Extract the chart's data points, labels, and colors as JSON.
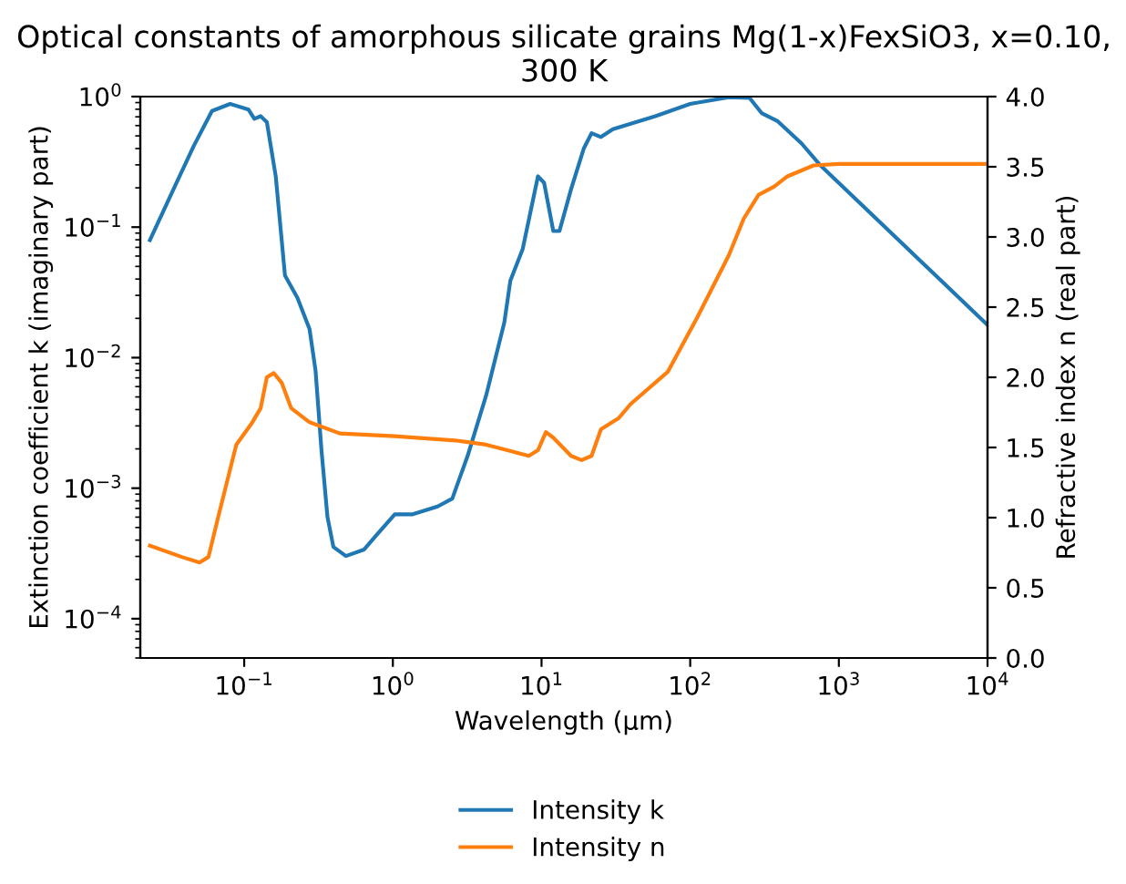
{
  "chart_data": {
    "type": "line",
    "title": "Optical constants of amorphous silicate grains Mg(1-x)FexSiO3, x=0.10,\n300 K",
    "xlabel": "Wavelength (μm)",
    "ylabel": "Extinction coefficient k (imaginary part)",
    "y2label": "Refractive index n (real part)",
    "log": "xy",
    "legend": "bottom",
    "grid": false,
    "xlim": [
      0.02,
      10000
    ],
    "xticks": [
      {
        "value": 0.1,
        "label": "10$^{−1}$"
      },
      {
        "value": 1,
        "label": "10$^{0}$"
      },
      {
        "value": 10,
        "label": "10$^{1}$"
      },
      {
        "value": 100,
        "label": "10$^{2}$"
      },
      {
        "value": 1000,
        "label": "10$^{3}$"
      },
      {
        "value": 10000,
        "label": "10$^{4}$"
      }
    ],
    "ylim": [
      5e-05,
      1
    ],
    "yticks": [
      {
        "value": 0.0001,
        "label": "10$^{−4}$"
      },
      {
        "value": 0.001,
        "label": "10$^{−3}$"
      },
      {
        "value": 0.01,
        "label": "10$^{−2}$"
      },
      {
        "value": 0.1,
        "label": "10$^{−1}$"
      },
      {
        "value": 1,
        "label": "10$^{0}$"
      }
    ],
    "y2lim": [
      0,
      4
    ],
    "y2ticks": [
      {
        "value": 0,
        "label": "0.0"
      },
      {
        "value": 0.5,
        "label": "0.5"
      },
      {
        "value": 1,
        "label": "1.0"
      },
      {
        "value": 1.5,
        "label": "1.5"
      },
      {
        "value": 2,
        "label": "2.0"
      },
      {
        "value": 2.5,
        "label": "2.5"
      },
      {
        "value": 3,
        "label": "3.0"
      },
      {
        "value": 3.5,
        "label": "3.5"
      },
      {
        "value": 4,
        "label": "4.0"
      }
    ],
    "series": [
      {
        "name": "Intensity k",
        "color": "#1f77b4",
        "x": [
          0.0232,
          0.0344,
          0.0457,
          0.0607,
          0.0805,
          0.107,
          0.117,
          0.129,
          0.142,
          0.163,
          0.188,
          0.228,
          0.275,
          0.302,
          0.331,
          0.363,
          0.398,
          0.483,
          0.641,
          0.776,
          1.03,
          1.36,
          2.0,
          2.51,
          3.19,
          4.24,
          5.62,
          6.17,
          7.46,
          9.46,
          10.4,
          12.0,
          13.2,
          15.8,
          19.2,
          21.7,
          25.1,
          30.2,
          58.3,
          100,
          182,
          251,
          302,
          389,
          562,
          741,
          10000
        ],
        "values": [
          0.0794,
          0.209,
          0.417,
          0.776,
          0.879,
          0.794,
          0.676,
          0.708,
          0.638,
          0.245,
          0.0427,
          0.0288,
          0.0166,
          0.00794,
          0.00195,
          0.000603,
          0.000355,
          0.000302,
          0.000339,
          0.000437,
          0.000631,
          0.000631,
          0.000724,
          0.000832,
          0.00178,
          0.00513,
          0.0186,
          0.0389,
          0.0676,
          0.245,
          0.219,
          0.0933,
          0.0933,
          0.195,
          0.398,
          0.525,
          0.49,
          0.562,
          0.708,
          0.879,
          0.99,
          0.977,
          0.748,
          0.646,
          0.437,
          0.302,
          0.0178
        ]
      },
      {
        "name": "Intensity n",
        "color": "#ff7f0e",
        "axis": "y2",
        "x": [
          0.0232,
          0.038,
          0.0501,
          0.0575,
          0.0667,
          0.0885,
          0.112,
          0.129,
          0.142,
          0.158,
          0.179,
          0.207,
          0.275,
          0.44,
          1.03,
          2.63,
          4.24,
          5.89,
          8.2,
          9.46,
          10.7,
          12.0,
          15.8,
          18.6,
          21.7,
          25.1,
          33.1,
          39.8,
          70.8,
          112,
          182,
          229,
          288,
          368,
          447,
          676,
          1000,
          10000
        ],
        "values": [
          0.8,
          0.72,
          0.68,
          0.72,
          1.0,
          1.52,
          1.67,
          1.78,
          2.0,
          2.03,
          1.96,
          1.78,
          1.68,
          1.6,
          1.58,
          1.55,
          1.52,
          1.48,
          1.44,
          1.48,
          1.61,
          1.57,
          1.44,
          1.41,
          1.44,
          1.63,
          1.71,
          1.81,
          2.04,
          2.43,
          2.87,
          3.13,
          3.3,
          3.36,
          3.43,
          3.51,
          3.52,
          3.52
        ]
      }
    ]
  }
}
